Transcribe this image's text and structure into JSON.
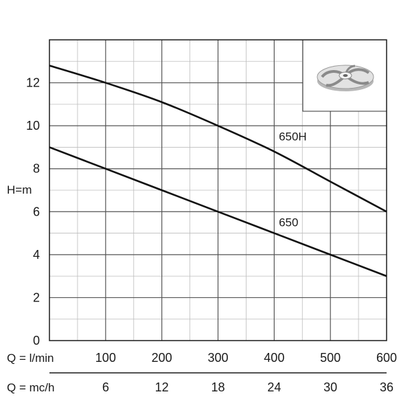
{
  "chart_data": {
    "type": "line",
    "title": "",
    "xlabel": "Q = l/min",
    "x2label": "Q = mc/h",
    "ylabel": "H=m",
    "xlim": [
      0,
      600
    ],
    "ylim": [
      0,
      14
    ],
    "x_ticks": [
      100,
      200,
      300,
      400,
      500,
      600
    ],
    "x2_ticks": [
      6,
      12,
      18,
      24,
      30,
      36
    ],
    "y_ticks": [
      0,
      2,
      4,
      6,
      8,
      10,
      12
    ],
    "x_minor_step": 50,
    "y_minor_step": 1,
    "grid": true,
    "legend": "none",
    "series": [
      {
        "name": "650H",
        "x": [
          0,
          100,
          200,
          300,
          400,
          500,
          600
        ],
        "y": [
          12.8,
          12.0,
          11.1,
          10.0,
          8.8,
          7.4,
          6.0
        ]
      },
      {
        "name": "650",
        "x": [
          0,
          100,
          200,
          300,
          400,
          500,
          600
        ],
        "y": [
          9.0,
          8.0,
          7.0,
          6.0,
          5.0,
          4.0,
          3.0
        ]
      }
    ],
    "inset_image": "impeller-icon"
  }
}
